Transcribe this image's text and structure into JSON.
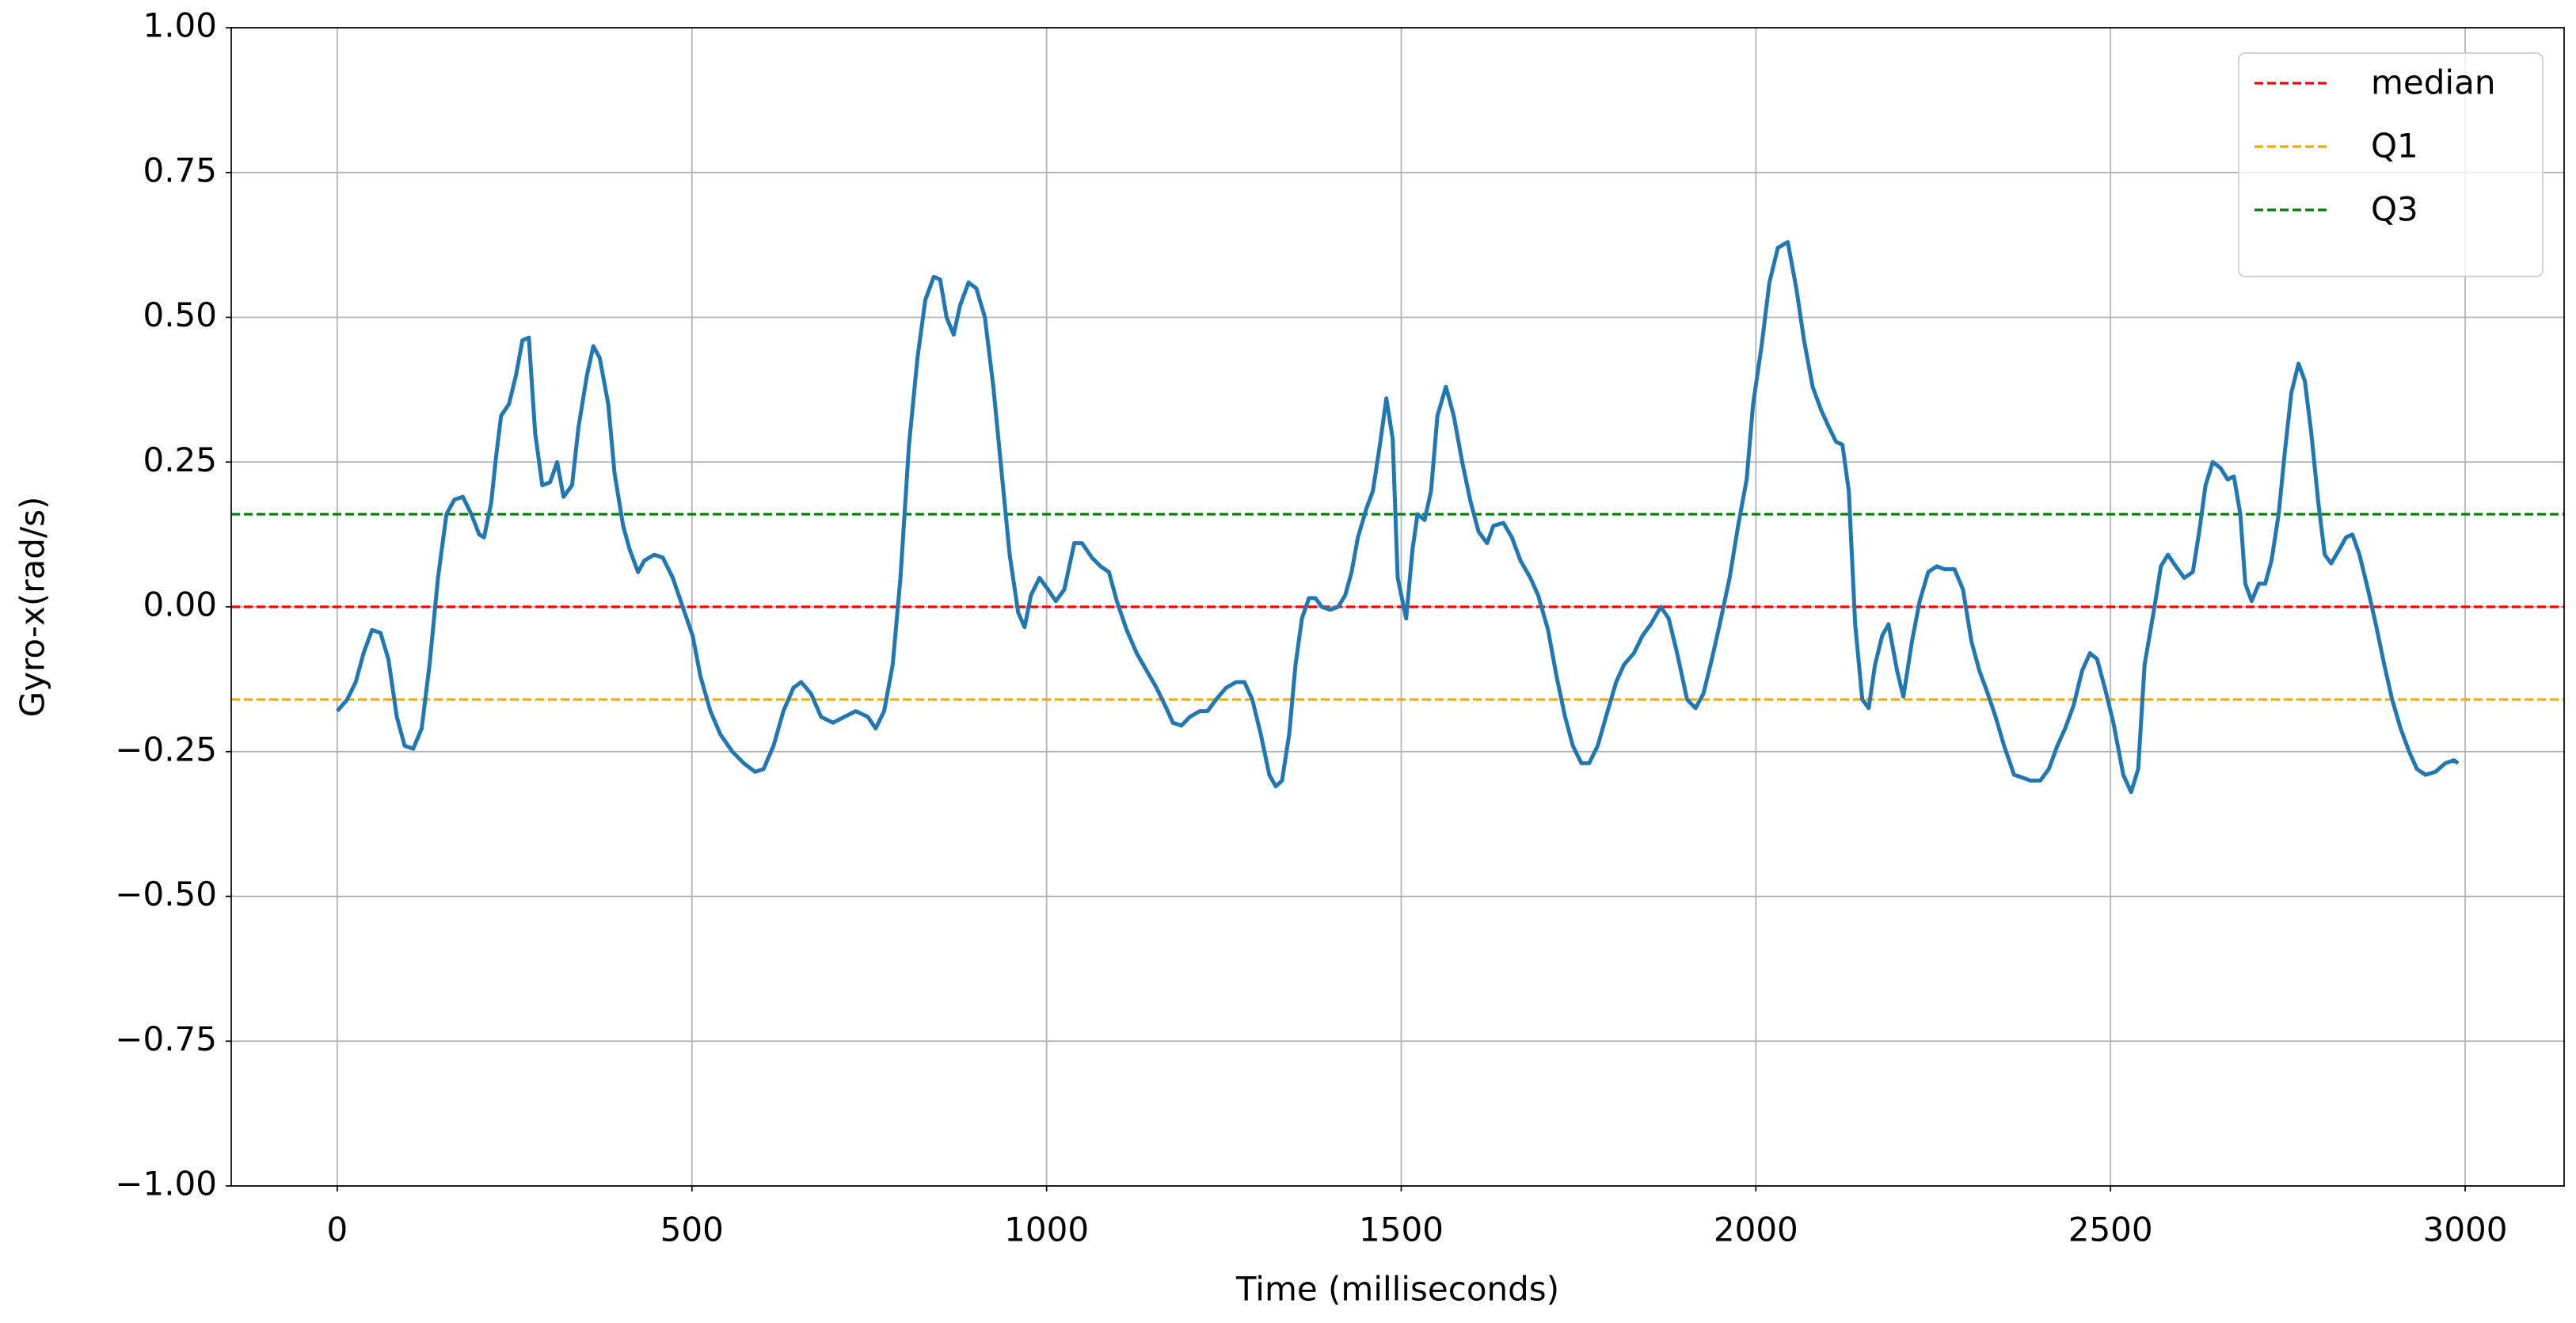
{
  "chart_data": {
    "type": "line",
    "xlabel": "Time (milliseconds)",
    "ylabel": "Gyro-x(rad/s)",
    "xlim": [
      -149.5,
      3139.5
    ],
    "ylim": [
      -1,
      1
    ],
    "xticks": [
      0,
      500,
      1000,
      1500,
      2000,
      2500,
      3000
    ],
    "yticks": [
      {
        "value": -1,
        "label": "−1.00"
      },
      {
        "value": -0.75,
        "label": "−0.75"
      },
      {
        "value": -0.5,
        "label": "−0.50"
      },
      {
        "value": -0.25,
        "label": "−0.25"
      },
      {
        "value": 0,
        "label": "0.00"
      },
      {
        "value": 0.25,
        "label": "0.25"
      },
      {
        "value": 0.5,
        "label": "0.50"
      },
      {
        "value": 0.75,
        "label": "0.75"
      },
      {
        "value": 1,
        "label": "1.00"
      }
    ],
    "grid": true,
    "legend": "upper right",
    "hlines": [
      {
        "name": "median",
        "color": "red",
        "value": 0,
        "linestyle": "dashed"
      },
      {
        "name": "Q1",
        "color": "orange",
        "value": -0.16,
        "linestyle": "dashed"
      },
      {
        "name": "Q3",
        "color": "green",
        "value": 0.16,
        "linestyle": "dashed"
      }
    ],
    "series": [
      {
        "color": "#1f77b4",
        "x": [
          0,
          14,
          26,
          37,
          49,
          61,
          72,
          84,
          95,
          107,
          119,
          130,
          142,
          154,
          165,
          177,
          189,
          200,
          207,
          217,
          224,
          231,
          242,
          252,
          261,
          270,
          279,
          289,
          300,
          310,
          319,
          331,
          340,
          352,
          361,
          370,
          382,
          391,
          403,
          412,
          424,
          433,
          447,
          459,
          473,
          487,
          501,
          512,
          526,
          540,
          557,
          573,
          589,
          601,
          615,
          629,
          643,
          654,
          668,
          682,
          699,
          715,
          731,
          748,
          759,
          771,
          783,
          794,
          806,
          818,
          829,
          841,
          850,
          859,
          869,
          878,
          890,
          901,
          913,
          925,
          936,
          948,
          960,
          969,
          978,
          990,
          1002,
          1013,
          1025,
          1039,
          1050,
          1064,
          1076,
          1088,
          1099,
          1113,
          1127,
          1141,
          1155,
          1167,
          1178,
          1190,
          1202,
          1216,
          1227,
          1239,
          1253,
          1267,
          1279,
          1290,
          1302,
          1314,
          1323,
          1332,
          1342,
          1351,
          1360,
          1370,
          1379,
          1388,
          1400,
          1411,
          1421,
          1430,
          1439,
          1451,
          1460,
          1470,
          1479,
          1488,
          1495,
          1507,
          1516,
          1523,
          1533,
          1542,
          1551,
          1563,
          1574,
          1586,
          1598,
          1609,
          1621,
          1630,
          1644,
          1656,
          1668,
          1682,
          1693,
          1707,
          1719,
          1731,
          1742,
          1754,
          1765,
          1777,
          1791,
          1803,
          1814,
          1828,
          1840,
          1852,
          1866,
          1877,
          1889,
          1903,
          1915,
          1926,
          1938,
          1949,
          1963,
          1975,
          1987,
          1996,
          2008,
          2019,
          2031,
          2045,
          2057,
          2068,
          2080,
          2092,
          2103,
          2113,
          2122,
          2131,
          2140,
          2150,
          2159,
          2168,
          2178,
          2187,
          2199,
          2208,
          2220,
          2231,
          2243,
          2255,
          2266,
          2280,
          2292,
          2304,
          2315,
          2327,
          2338,
          2350,
          2364,
          2376,
          2387,
          2401,
          2413,
          2425,
          2436,
          2448,
          2460,
          2471,
          2481,
          2492,
          2504,
          2518,
          2529,
          2539,
          2548,
          2562,
          2571,
          2581,
          2592,
          2604,
          2616,
          2625,
          2634,
          2644,
          2655,
          2665,
          2674,
          2683,
          2690,
          2699,
          2709,
          2718,
          2727,
          2737,
          2746,
          2755,
          2765,
          2774,
          2783,
          2793,
          2802,
          2811,
          2823,
          2832,
          2841,
          2851,
          2863,
          2874,
          2886,
          2897,
          2909,
          2921,
          2932,
          2944,
          2958,
          2972,
          2984,
          2990
        ],
        "values": [
          -0.18,
          -0.16,
          -0.13,
          -0.08,
          -0.04,
          -0.045,
          -0.09,
          -0.19,
          -0.24,
          -0.245,
          -0.21,
          -0.1,
          0.05,
          0.16,
          0.185,
          0.19,
          0.16,
          0.125,
          0.12,
          0.18,
          0.26,
          0.33,
          0.35,
          0.4,
          0.46,
          0.465,
          0.3,
          0.21,
          0.215,
          0.25,
          0.19,
          0.21,
          0.31,
          0.4,
          0.45,
          0.43,
          0.35,
          0.23,
          0.14,
          0.1,
          0.06,
          0.08,
          0.09,
          0.085,
          0.05,
          0,
          -0.05,
          -0.12,
          -0.18,
          -0.22,
          -0.25,
          -0.27,
          -0.285,
          -0.28,
          -0.24,
          -0.18,
          -0.14,
          -0.13,
          -0.15,
          -0.19,
          -0.2,
          -0.19,
          -0.18,
          -0.19,
          -0.21,
          -0.18,
          -0.1,
          0.05,
          0.28,
          0.43,
          0.53,
          0.57,
          0.565,
          0.5,
          0.47,
          0.52,
          0.56,
          0.55,
          0.5,
          0.38,
          0.24,
          0.09,
          -0.01,
          -0.035,
          0.02,
          0.05,
          0.03,
          0.01,
          0.03,
          0.11,
          0.11,
          0.085,
          0.07,
          0.06,
          0.01,
          -0.04,
          -0.08,
          -0.11,
          -0.14,
          -0.17,
          -0.2,
          -0.205,
          -0.19,
          -0.18,
          -0.18,
          -0.16,
          -0.14,
          -0.13,
          -0.13,
          -0.16,
          -0.22,
          -0.29,
          -0.31,
          -0.3,
          -0.22,
          -0.1,
          -0.02,
          0.015,
          0.015,
          0,
          -0.005,
          0,
          0.02,
          0.06,
          0.12,
          0.17,
          0.2,
          0.28,
          0.36,
          0.29,
          0.05,
          -0.02,
          0.1,
          0.16,
          0.15,
          0.2,
          0.33,
          0.38,
          0.33,
          0.25,
          0.18,
          0.13,
          0.11,
          0.14,
          0.145,
          0.12,
          0.08,
          0.05,
          0.02,
          -0.04,
          -0.12,
          -0.19,
          -0.24,
          -0.27,
          -0.27,
          -0.24,
          -0.18,
          -0.13,
          -0.1,
          -0.08,
          -0.05,
          -0.03,
          0,
          -0.02,
          -0.08,
          -0.16,
          -0.175,
          -0.15,
          -0.09,
          -0.03,
          0.05,
          0.14,
          0.22,
          0.35,
          0.45,
          0.56,
          0.62,
          0.63,
          0.55,
          0.46,
          0.38,
          0.34,
          0.31,
          0.285,
          0.28,
          0.2,
          -0.03,
          -0.16,
          -0.175,
          -0.1,
          -0.05,
          -0.03,
          -0.11,
          -0.155,
          -0.06,
          0.01,
          0.06,
          0.07,
          0.065,
          0.065,
          0.03,
          -0.06,
          -0.11,
          -0.15,
          -0.19,
          -0.24,
          -0.29,
          -0.295,
          -0.3,
          -0.3,
          -0.28,
          -0.24,
          -0.21,
          -0.17,
          -0.11,
          -0.08,
          -0.09,
          -0.14,
          -0.2,
          -0.29,
          -0.32,
          -0.28,
          -0.1,
          0,
          0.07,
          0.09,
          0.07,
          0.05,
          0.06,
          0.13,
          0.21,
          0.25,
          0.24,
          0.22,
          0.225,
          0.16,
          0.04,
          0.01,
          0.04,
          0.04,
          0.08,
          0.16,
          0.27,
          0.37,
          0.42,
          0.39,
          0.3,
          0.18,
          0.09,
          0.075,
          0.1,
          0.12,
          0.125,
          0.09,
          0.03,
          -0.03,
          -0.1,
          -0.16,
          -0.21,
          -0.25,
          -0.28,
          -0.29,
          -0.285,
          -0.27,
          -0.265,
          -0.27
        ]
      }
    ]
  }
}
